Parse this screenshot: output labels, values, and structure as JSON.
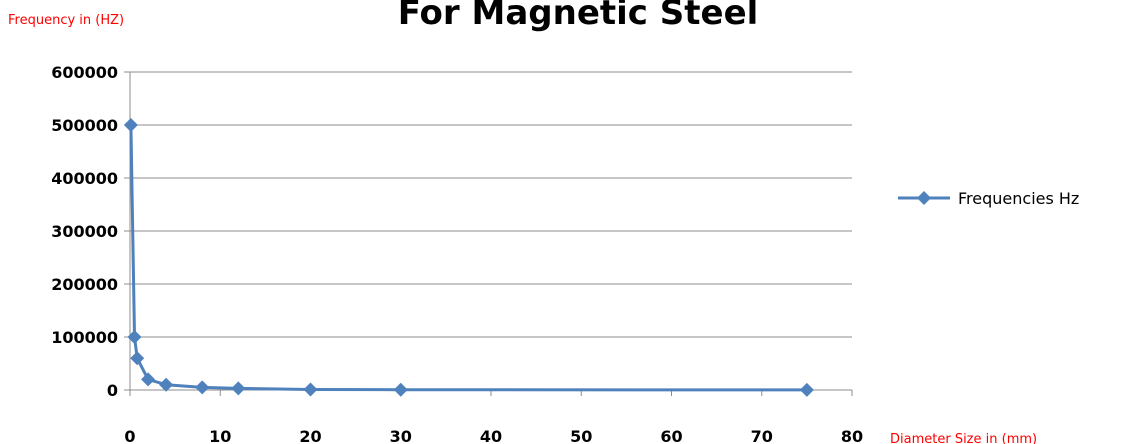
{
  "chart_data": {
    "type": "scatter",
    "title": "For Magnetic Steel",
    "ylabel": "Frequency in (HZ)",
    "xlabel": "Diameter Size in (mm)",
    "xlim": [
      0,
      80
    ],
    "ylim": [
      0,
      600000
    ],
    "xticks": [
      "0",
      "10",
      "20",
      "30",
      "40",
      "50",
      "60",
      "70",
      "80"
    ],
    "yticks": [
      "0",
      "100000",
      "200000",
      "300000",
      "400000",
      "500000",
      "600000"
    ],
    "grid": "horizontal",
    "legend_position": "right",
    "colors": {
      "series": "#4f81bd",
      "label": "#ff0000",
      "grid": "#8c8c8c",
      "axis": "#8c8c8c"
    },
    "series": [
      {
        "name": "Frequencies Hz",
        "x": [
          0.1,
          0.5,
          0.8,
          2,
          4,
          8,
          12,
          20,
          30,
          75
        ],
        "y": [
          500000,
          100000,
          60000,
          20000,
          10000,
          5000,
          3000,
          1000,
          500,
          200
        ]
      }
    ]
  }
}
